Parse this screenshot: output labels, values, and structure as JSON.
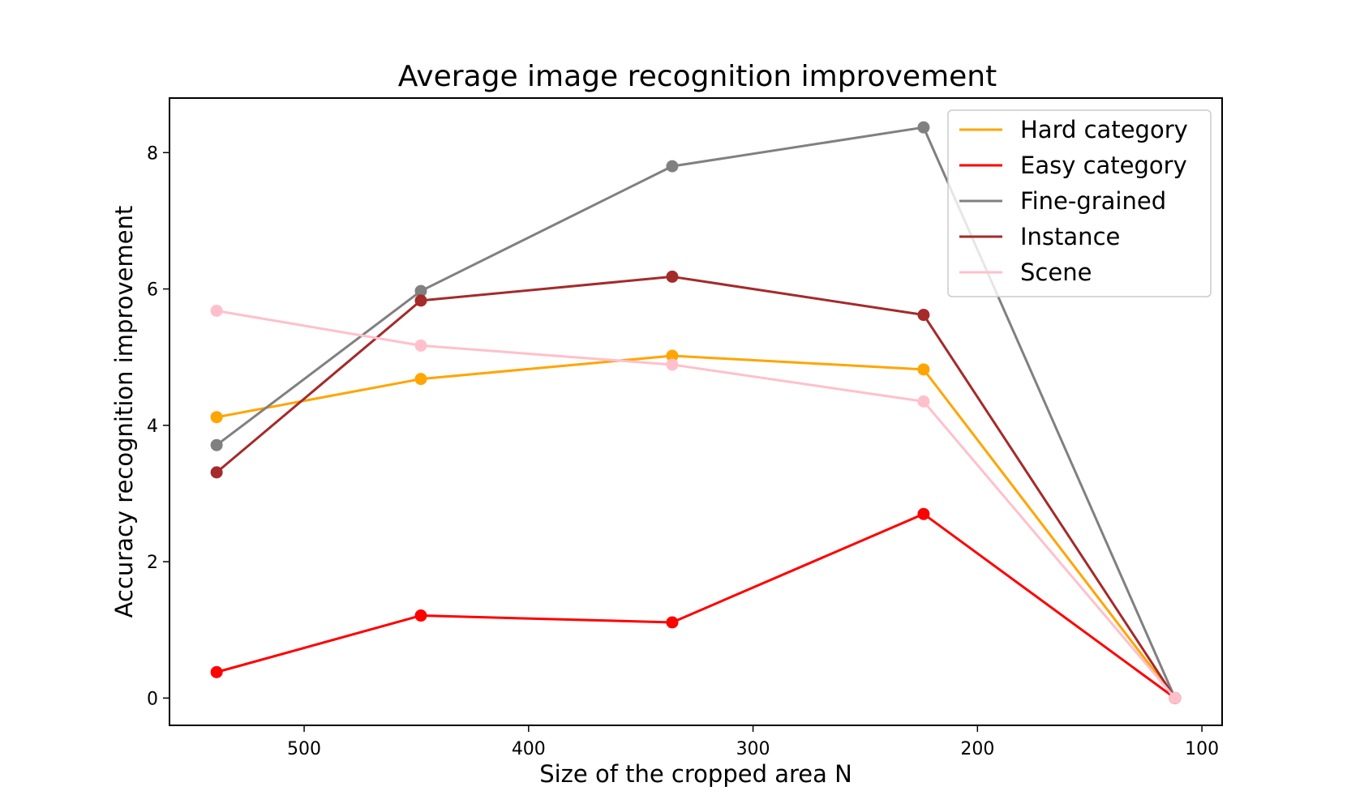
{
  "chart_data": {
    "type": "line",
    "title": "Average image recognition improvement",
    "xlabel": "Size of the cropped area N",
    "ylabel": "Accuracy recognition improvement",
    "x": [
      539,
      448,
      336,
      224,
      112
    ],
    "xlim": [
      560,
      91
    ],
    "ylim": [
      -0.4,
      8.8
    ],
    "xticks": [
      500,
      400,
      300,
      200,
      100
    ],
    "yticks": [
      0,
      2,
      4,
      6,
      8
    ],
    "grid": false,
    "legend_position": "top-right",
    "series": [
      {
        "name": "Hard category",
        "color": "#FFA500",
        "values": [
          4.12,
          4.68,
          5.02,
          4.82,
          0
        ]
      },
      {
        "name": "Easy category",
        "color": "#FF0000",
        "values": [
          0.38,
          1.21,
          1.11,
          2.7,
          0
        ]
      },
      {
        "name": "Fine-grained",
        "color": "#808080",
        "values": [
          3.71,
          5.97,
          7.8,
          8.37,
          0
        ]
      },
      {
        "name": "Instance",
        "color": "#A52A2A",
        "values": [
          3.31,
          5.83,
          6.18,
          5.62,
          0
        ]
      },
      {
        "name": "Scene",
        "color": "#FFC0CB",
        "values": [
          5.68,
          5.17,
          4.89,
          4.35,
          0
        ]
      }
    ]
  }
}
